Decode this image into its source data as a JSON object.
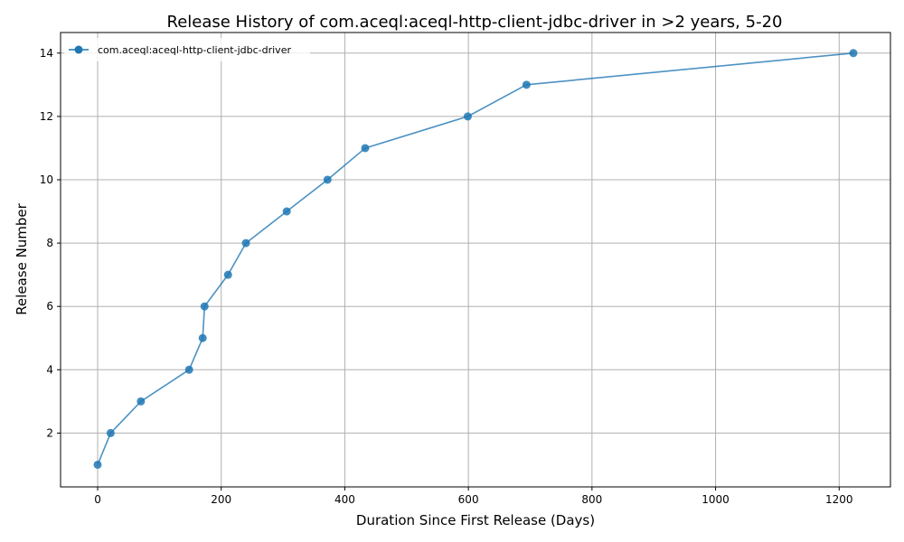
{
  "chart_data": {
    "type": "line",
    "title": "Release History of com.aceql:aceql-http-client-jdbc-driver in >2 years, 5-20",
    "xlabel": "Duration Since First Release (Days)",
    "ylabel": "Release Number",
    "xlim": [
      -60,
      1283
    ],
    "ylim": [
      0.3,
      14.65
    ],
    "xticks": [
      0,
      200,
      400,
      600,
      800,
      1000,
      1200
    ],
    "yticks": [
      2,
      4,
      6,
      8,
      10,
      12,
      14
    ],
    "grid": true,
    "legend_position": "top-left",
    "series": [
      {
        "name": "com.aceql:aceql-http-client-jdbc-driver",
        "color": "#1f77b4",
        "marker": "circle",
        "x": [
          0,
          21,
          70,
          148,
          170,
          173,
          211,
          240,
          306,
          372,
          433,
          599,
          694,
          1223
        ],
        "y": [
          1,
          2,
          3,
          4,
          5,
          6,
          7,
          8,
          9,
          10,
          11,
          12,
          13,
          14
        ]
      }
    ]
  }
}
